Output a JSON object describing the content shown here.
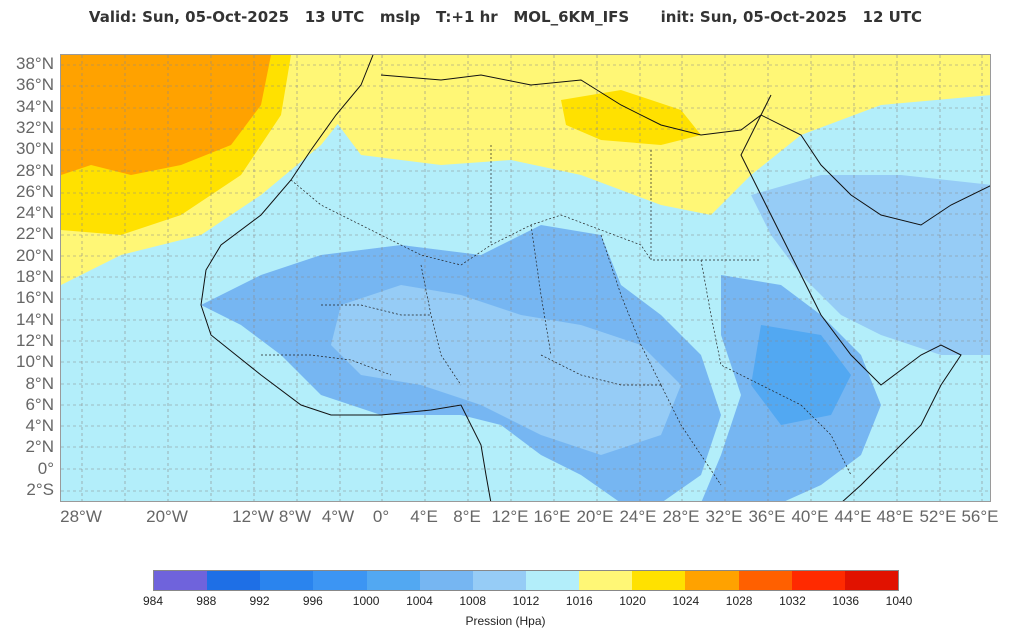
{
  "header": {
    "title": "Valid: Sun, 05-Oct-2025   13 UTC   mslp   T:+1 hr   MOL_6KM_IFS      init: Sun, 05-Oct-2025   12 UTC"
  },
  "map": {
    "lat_labels": [
      "38°N",
      "36°N",
      "34°N",
      "32°N",
      "30°N",
      "28°N",
      "26°N",
      "24°N",
      "22°N",
      "20°N",
      "18°N",
      "16°N",
      "14°N",
      "12°N",
      "10°N",
      "8°N",
      "6°N",
      "4°N",
      "2°N",
      "0°",
      "2°S"
    ],
    "lon_labels": [
      "28°W",
      "20°W",
      "12°W",
      "8°W",
      "4°W",
      "0°",
      "4°E",
      "8°E",
      "12°E",
      "16°E",
      "20°E",
      "24°E",
      "28°E",
      "32°E",
      "36°E",
      "40°E",
      "44°E",
      "48°E",
      "52°E",
      "56°E"
    ]
  },
  "colorbar": {
    "label": "Pression (Hpa)",
    "ticks": [
      "984",
      "988",
      "992",
      "996",
      "1000",
      "1004",
      "1008",
      "1012",
      "1016",
      "1020",
      "1024",
      "1028",
      "1032",
      "1036",
      "1040"
    ],
    "colors": [
      "#6f63dc",
      "#1e6fe6",
      "#2a84ee",
      "#3c95f3",
      "#52a8f2",
      "#76b6f2",
      "#96ccf6",
      "#b3eefa",
      "#fff776",
      "#ffe100",
      "#ffa200",
      "#ff6000",
      "#ff2a00",
      "#e11200"
    ]
  }
}
